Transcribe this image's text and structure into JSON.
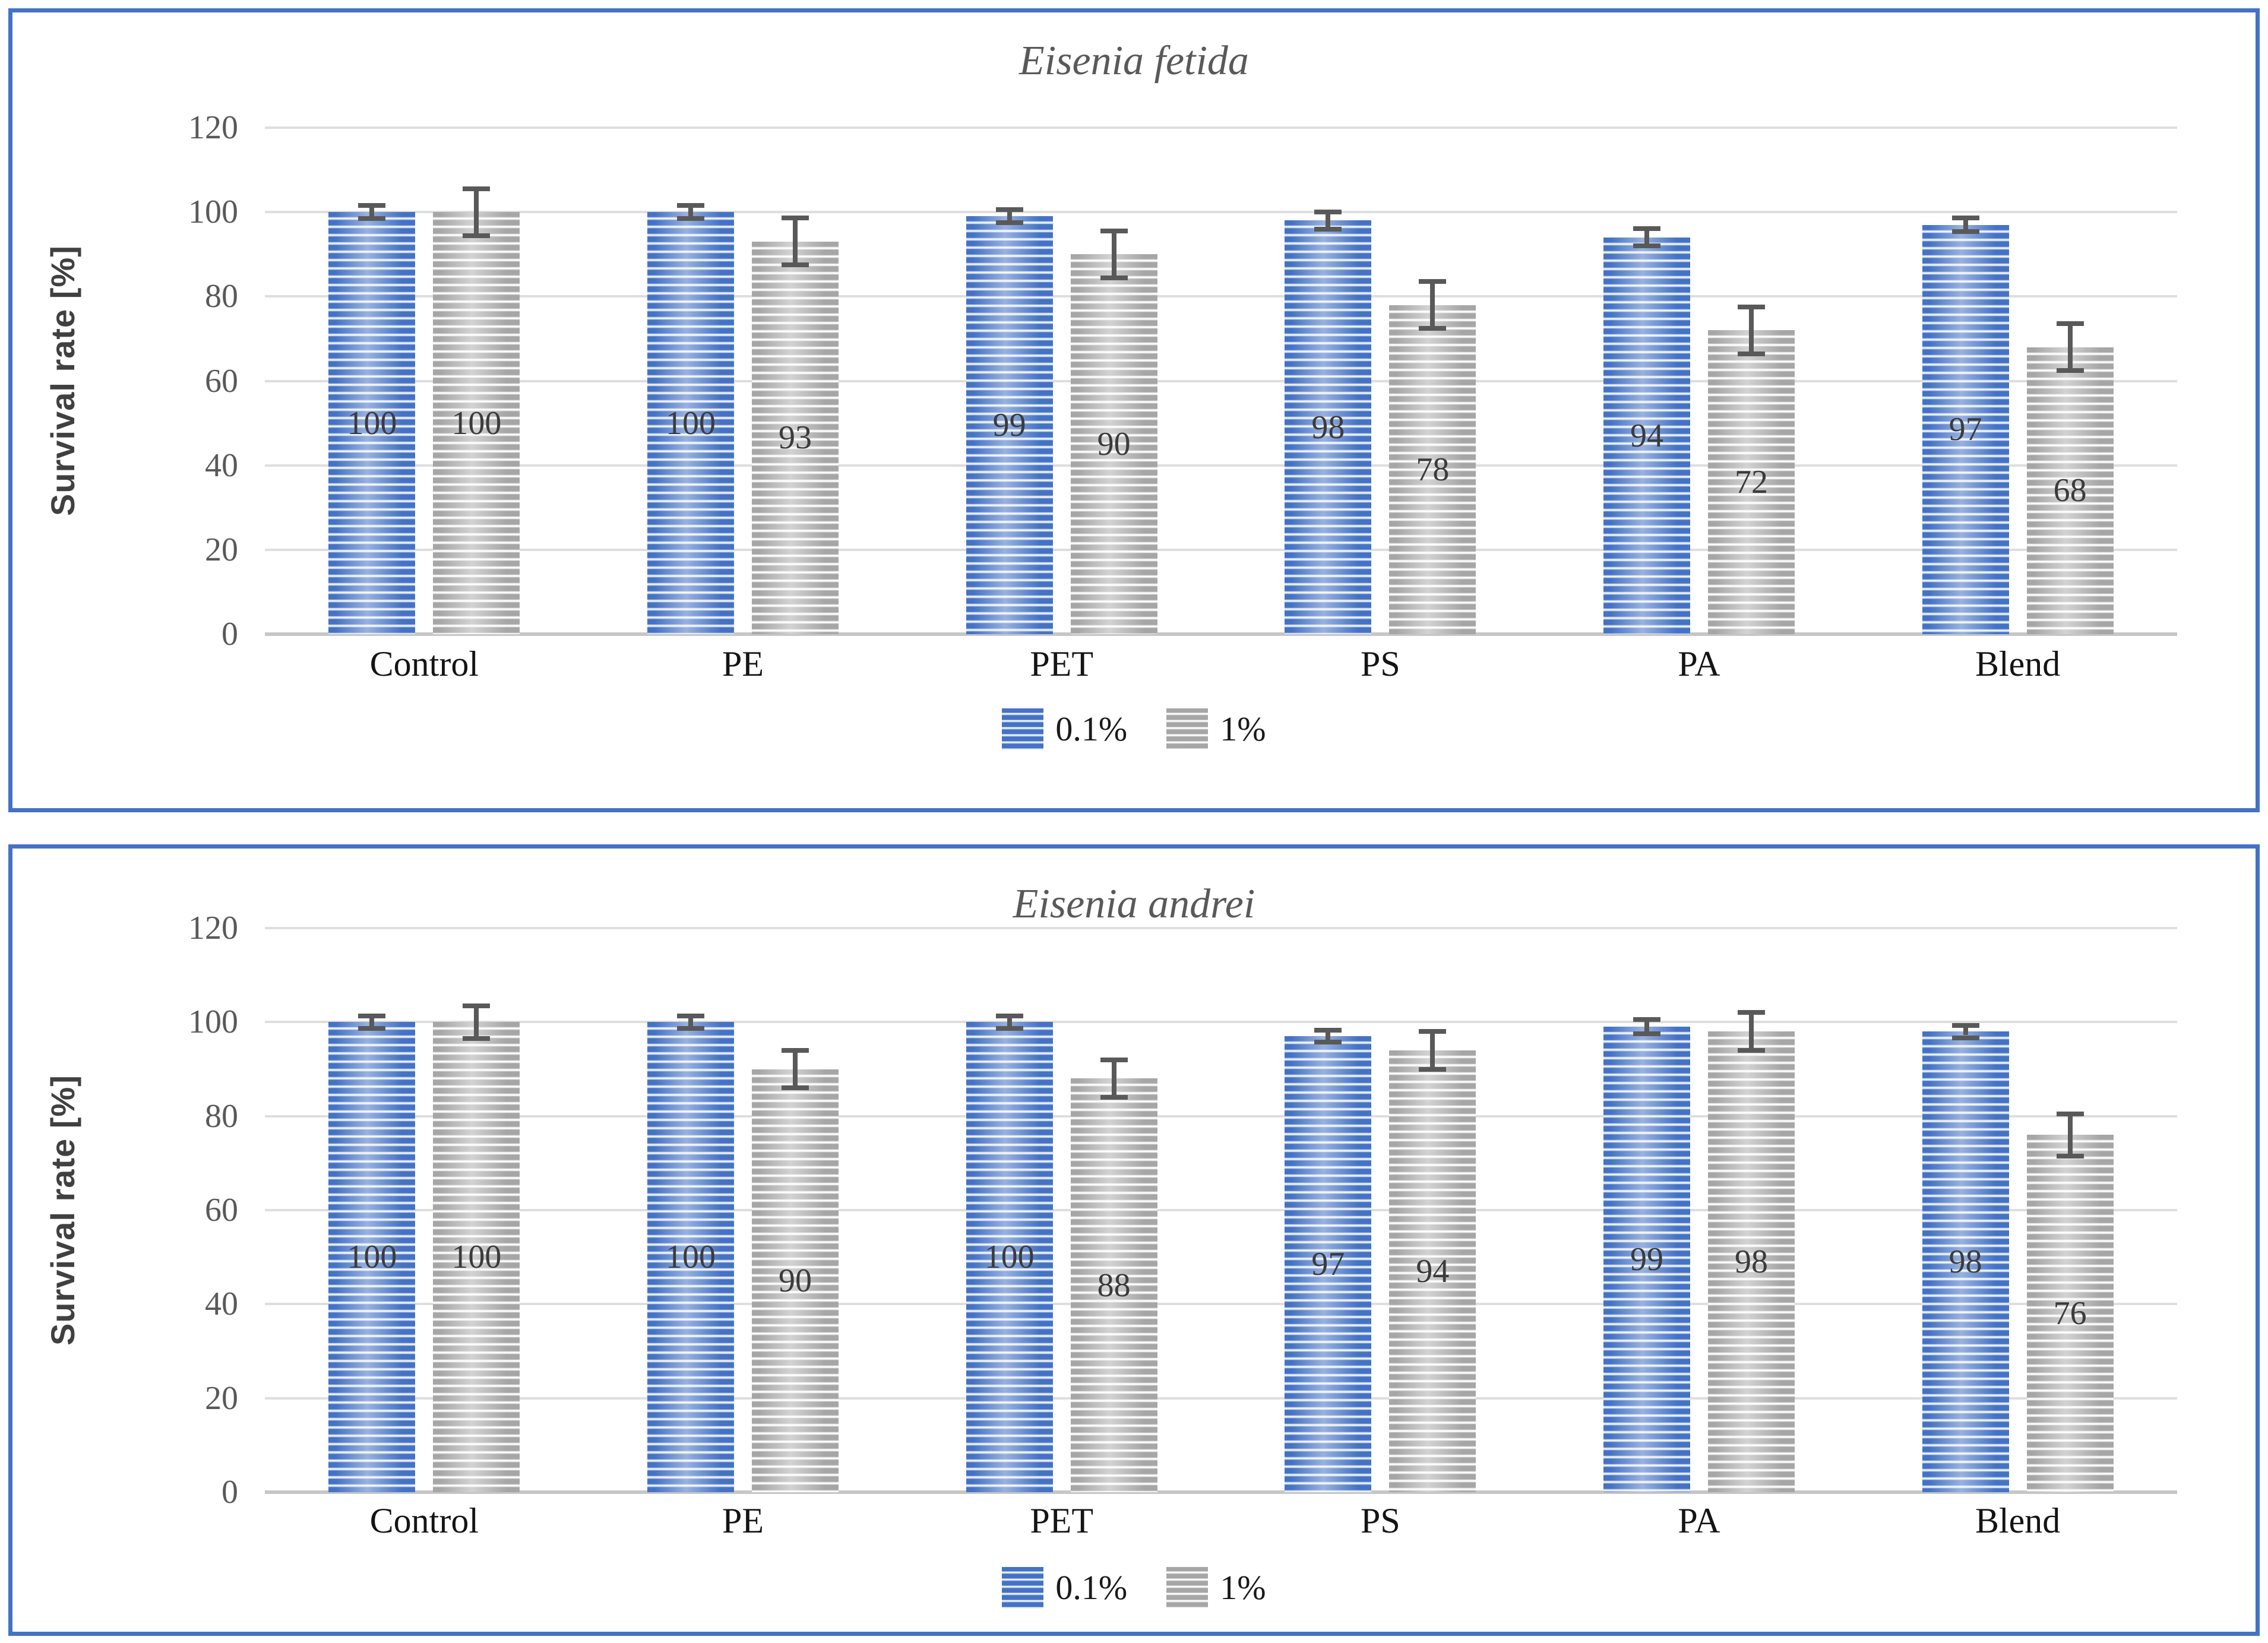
{
  "figure": {
    "panel_border_color": "#4472C4",
    "gridline_color": "#DEDEDE",
    "axis_line_color": "#C6C6C6",
    "error_bar_color": "#595959",
    "series_colors": {
      "0.1%": "#4472C4",
      "1%": "#A6A6A6"
    }
  },
  "chart_data": [
    {
      "type": "bar",
      "title": "Eisenia fetida",
      "xlabel": "",
      "ylabel": "Survival rate [%]",
      "ylim": [
        0,
        120
      ],
      "yticks": [
        0,
        20,
        40,
        60,
        80,
        100,
        120
      ],
      "grid": true,
      "legend_position": "bottom",
      "categories": [
        "Control",
        "PE",
        "PET",
        "PS",
        "PA",
        "Blend"
      ],
      "series": [
        {
          "name": "0.1%",
          "color": "#4472C4",
          "values": [
            100,
            100,
            99,
            98,
            94,
            97
          ],
          "data_labels": [
            "100",
            "100",
            "99",
            "98",
            "94",
            "97"
          ],
          "errors_est": [
            1,
            1,
            1,
            1.5,
            1.5,
            1
          ]
        },
        {
          "name": "1%",
          "color": "#A6A6A6",
          "values": [
            100,
            93,
            90,
            78,
            72,
            68
          ],
          "data_labels": [
            "100",
            "93",
            "90",
            "78",
            "72",
            "68"
          ],
          "errors_est": [
            5,
            5,
            5,
            5,
            5,
            5
          ]
        }
      ]
    },
    {
      "type": "bar",
      "title": "Eisenia andrei",
      "xlabel": "",
      "ylabel": "Survival rate [%]",
      "ylim": [
        0,
        120
      ],
      "yticks": [
        0,
        20,
        40,
        60,
        80,
        100,
        120
      ],
      "grid": true,
      "legend_position": "bottom",
      "categories": [
        "Control",
        "PE",
        "PET",
        "PS",
        "PA",
        "Blend"
      ],
      "series": [
        {
          "name": "0.1%",
          "color": "#4472C4",
          "values": [
            100,
            100,
            100,
            97,
            99,
            98
          ],
          "data_labels": [
            "100",
            "100",
            "100",
            "97",
            "99",
            "98"
          ],
          "errors_est": [
            0.8,
            0.8,
            0.8,
            0.8,
            1,
            0.8
          ]
        },
        {
          "name": "1%",
          "color": "#A6A6A6",
          "values": [
            100,
            90,
            88,
            94,
            98,
            76
          ],
          "data_labels": [
            "100",
            "90",
            "88",
            "94",
            "98",
            "76"
          ],
          "errors_est": [
            3,
            3.5,
            3.5,
            3.5,
            3.5,
            4
          ]
        }
      ]
    }
  ]
}
